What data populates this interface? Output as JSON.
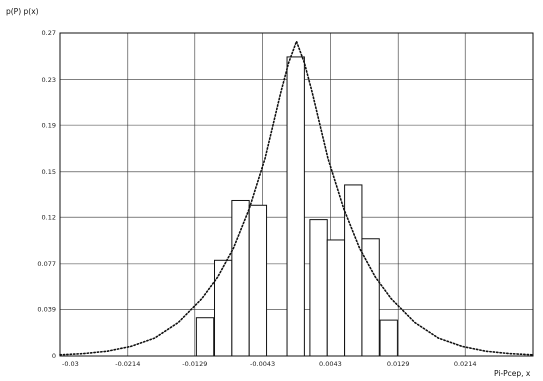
{
  "chart_data": {
    "type": "bar",
    "title": "",
    "ylabel": "p(P) p(x)",
    "xlabel": "Pi-Pcep, x",
    "x_tick_labels": [
      "-0.03",
      "-0.0214",
      "-0.0129",
      "-0.0043",
      "0.0043",
      "0.0129",
      "0.0214"
    ],
    "x_ticks": [
      -0.03,
      -0.0214,
      -0.0129,
      -0.0043,
      0.0043,
      0.0129,
      0.0214
    ],
    "y_tick_labels": [
      "0",
      "0.039",
      "0.077",
      "0.12",
      "0.15",
      "0.19",
      "0.23",
      "0.27"
    ],
    "y_ticks": [
      0,
      0.039,
      0.077,
      0.116,
      0.154,
      0.193,
      0.231,
      0.27
    ],
    "xlim": [
      -0.03,
      0.03
    ],
    "ylim": [
      0,
      0.27
    ],
    "grid": true,
    "series": [
      {
        "kind": "histogram",
        "bin_width": 0.0022,
        "bins": [
          {
            "x": -0.0116,
            "y": 0.032
          },
          {
            "x": -0.0093,
            "y": 0.08
          },
          {
            "x": -0.0071,
            "y": 0.13
          },
          {
            "x": -0.0049,
            "y": 0.126
          },
          {
            "x": -0.0001,
            "y": 0.25
          },
          {
            "x": 0.0028,
            "y": 0.114
          },
          {
            "x": 0.005,
            "y": 0.097
          },
          {
            "x": 0.0072,
            "y": 0.143
          },
          {
            "x": 0.0094,
            "y": 0.098
          },
          {
            "x": 0.0117,
            "y": 0.03
          }
        ]
      },
      {
        "kind": "line",
        "style": "dotted",
        "points": [
          [
            -0.03,
            0.001
          ],
          [
            -0.027,
            0.002
          ],
          [
            -0.024,
            0.004
          ],
          [
            -0.021,
            0.008
          ],
          [
            -0.018,
            0.015
          ],
          [
            -0.015,
            0.028
          ],
          [
            -0.012,
            0.048
          ],
          [
            -0.01,
            0.066
          ],
          [
            -0.008,
            0.09
          ],
          [
            -0.006,
            0.123
          ],
          [
            -0.004,
            0.165
          ],
          [
            -0.002,
            0.22
          ],
          [
            -0.001,
            0.245
          ],
          [
            0,
            0.263
          ],
          [
            0.001,
            0.245
          ],
          [
            0.002,
            0.22
          ],
          [
            0.004,
            0.165
          ],
          [
            0.006,
            0.123
          ],
          [
            0.008,
            0.09
          ],
          [
            0.01,
            0.066
          ],
          [
            0.012,
            0.048
          ],
          [
            0.015,
            0.028
          ],
          [
            0.018,
            0.015
          ],
          [
            0.021,
            0.008
          ],
          [
            0.024,
            0.004
          ],
          [
            0.027,
            0.002
          ],
          [
            0.03,
            0.001
          ]
        ]
      }
    ]
  }
}
